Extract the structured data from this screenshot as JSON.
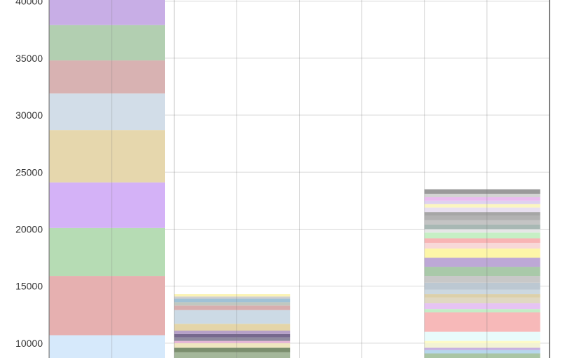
{
  "chart_data": {
    "type": "bar",
    "stacked": true,
    "grid": true,
    "ylim": [
      8700,
      40100
    ],
    "yticks": [
      "10000",
      "15000",
      "20000",
      "25000",
      "30000",
      "35000",
      "40000"
    ],
    "ytick_values": [
      10000,
      15000,
      20000,
      25000,
      30000,
      35000,
      40000
    ],
    "bars": [
      {
        "segments": [
          {
            "from": 8700,
            "to": 10700,
            "color": "#d6e9fb"
          },
          {
            "from": 10700,
            "to": 15900,
            "color": "#e6b0b0"
          },
          {
            "from": 15900,
            "to": 20100,
            "color": "#b6dcb4"
          },
          {
            "from": 20100,
            "to": 24100,
            "color": "#d4b2f7"
          },
          {
            "from": 24100,
            "to": 28700,
            "color": "#e6d7ad"
          },
          {
            "from": 28700,
            "to": 31900,
            "color": "#d2dde8"
          },
          {
            "from": 31900,
            "to": 34800,
            "color": "#d8b2b2"
          },
          {
            "from": 34800,
            "to": 37900,
            "color": "#b2cfb1"
          },
          {
            "from": 37900,
            "to": 40100,
            "color": "#c8aee6"
          }
        ]
      },
      {
        "segments": [
          {
            "from": 8700,
            "to": 9200,
            "color": "#a4b79a"
          },
          {
            "from": 9200,
            "to": 9600,
            "color": "#7b8e6e"
          },
          {
            "from": 9600,
            "to": 10000,
            "color": "#f0e6c0"
          },
          {
            "from": 10000,
            "to": 10200,
            "color": "#e6b6d6"
          },
          {
            "from": 10200,
            "to": 10500,
            "color": "#8f8a9f"
          },
          {
            "from": 10500,
            "to": 10800,
            "color": "#77698e"
          },
          {
            "from": 10800,
            "to": 11100,
            "color": "#b6a0c8"
          },
          {
            "from": 11100,
            "to": 11700,
            "color": "#e4d5a8"
          },
          {
            "from": 11700,
            "to": 12900,
            "color": "#ccdae5"
          },
          {
            "from": 12900,
            "to": 13300,
            "color": "#d8aeae"
          },
          {
            "from": 13300,
            "to": 13600,
            "color": "#c0c8c0"
          },
          {
            "from": 13600,
            "to": 13900,
            "color": "#a0c2d6"
          },
          {
            "from": 13900,
            "to": 14100,
            "color": "#cfcfcf"
          },
          {
            "from": 14100,
            "to": 14300,
            "color": "#fbf3b4"
          }
        ]
      },
      {
        "segments": []
      },
      {
        "segments": [
          {
            "from": 8700,
            "to": 9100,
            "color": "#a9c5a4"
          },
          {
            "from": 9100,
            "to": 9400,
            "color": "#b6d6ec"
          },
          {
            "from": 9400,
            "to": 9600,
            "color": "#c7b0e0"
          },
          {
            "from": 9600,
            "to": 10000,
            "color": "#f3f3d4"
          },
          {
            "from": 10000,
            "to": 10200,
            "color": "#fdfbc8"
          },
          {
            "from": 10200,
            "to": 11000,
            "color": "#e8fbfb"
          },
          {
            "from": 11000,
            "to": 12700,
            "color": "#f7b9b9"
          },
          {
            "from": 12700,
            "to": 13000,
            "color": "#c3ecc6"
          },
          {
            "from": 13000,
            "to": 13500,
            "color": "#e6c3f3"
          },
          {
            "from": 13500,
            "to": 14000,
            "color": "#e0d8c2"
          },
          {
            "from": 14000,
            "to": 14300,
            "color": "#dcd0aa"
          },
          {
            "from": 14300,
            "to": 14700,
            "color": "#ccd8e0"
          },
          {
            "from": 14700,
            "to": 15300,
            "color": "#bcc8d2"
          },
          {
            "from": 15300,
            "to": 15900,
            "color": "#c8c8c8"
          },
          {
            "from": 15900,
            "to": 16700,
            "color": "#a9c9a9"
          },
          {
            "from": 16700,
            "to": 17500,
            "color": "#bda8d6"
          },
          {
            "from": 17500,
            "to": 18300,
            "color": "#fdf6a8"
          },
          {
            "from": 18300,
            "to": 18800,
            "color": "#f8d8d8"
          },
          {
            "from": 18800,
            "to": 19200,
            "color": "#f8b4b4"
          },
          {
            "from": 19200,
            "to": 19700,
            "color": "#c6efc4"
          },
          {
            "from": 19700,
            "to": 20000,
            "color": "#e6e6e6"
          },
          {
            "from": 20000,
            "to": 20400,
            "color": "#a8b8b4"
          },
          {
            "from": 20400,
            "to": 20800,
            "color": "#c4c4c4"
          },
          {
            "from": 20800,
            "to": 21200,
            "color": "#b2b2b2"
          },
          {
            "from": 21200,
            "to": 21500,
            "color": "#a6a6a6"
          },
          {
            "from": 21500,
            "to": 21900,
            "color": "#e8e0f0"
          },
          {
            "from": 21900,
            "to": 22200,
            "color": "#fbf6c0"
          },
          {
            "from": 22200,
            "to": 22500,
            "color": "#ded1f0"
          },
          {
            "from": 22500,
            "to": 22800,
            "color": "#eabcf0"
          },
          {
            "from": 22800,
            "to": 23100,
            "color": "#d4d4d4"
          },
          {
            "from": 23100,
            "to": 23500,
            "color": "#9a9a9a"
          }
        ]
      }
    ]
  }
}
